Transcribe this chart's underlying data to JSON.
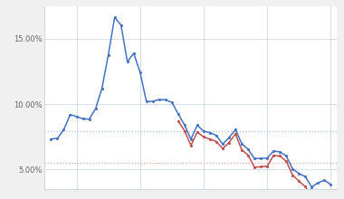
{
  "background_color": "#f0f0f0",
  "plot_bg_color": "#ffffff",
  "grid_color": "#d0d8e8",
  "years_30": [
    1971,
    1972,
    1973,
    1974,
    1975,
    1976,
    1977,
    1978,
    1979,
    1980,
    1981,
    1982,
    1983,
    1984,
    1985,
    1986,
    1987,
    1988,
    1989,
    1990,
    1991,
    1992,
    1993,
    1994,
    1995,
    1996,
    1997,
    1998,
    1999,
    2000,
    2001,
    2002,
    2003,
    2004,
    2005,
    2006,
    2007,
    2008,
    2009,
    2010,
    2011,
    2012,
    2013,
    2014,
    2015
  ],
  "rates_30yr": [
    7.33,
    7.38,
    8.04,
    9.19,
    9.05,
    8.87,
    8.85,
    9.64,
    11.2,
    13.74,
    16.63,
    16.04,
    13.24,
    13.88,
    12.43,
    10.19,
    10.21,
    10.34,
    10.32,
    10.13,
    9.25,
    8.39,
    7.31,
    8.38,
    7.93,
    7.81,
    7.6,
    6.94,
    7.44,
    8.05,
    6.97,
    6.54,
    5.83,
    5.84,
    5.87,
    6.41,
    6.34,
    6.03,
    5.04,
    4.69,
    4.45,
    3.66,
    3.98,
    4.17,
    3.85
  ],
  "years_15": [
    1991,
    1992,
    1993,
    1994,
    1995,
    1996,
    1997,
    1998,
    1999,
    2000,
    2001,
    2002,
    2003,
    2004,
    2005,
    2006,
    2007,
    2008,
    2009,
    2010,
    2011,
    2012,
    2013,
    2014,
    2015
  ],
  "rates_15yr": [
    8.69,
    7.96,
    6.83,
    7.86,
    7.48,
    7.32,
    7.13,
    6.59,
    7.06,
    7.72,
    6.5,
    6.09,
    5.17,
    5.21,
    5.25,
    6.07,
    6.03,
    5.62,
    4.57,
    4.1,
    3.68,
    2.93,
    3.11,
    3.36,
    3.09
  ],
  "color_30yr": "#4472c4",
  "color_15yr": "#c0504d",
  "color_30yr_ref": "#aabfe0",
  "color_15yr_ref": "#e0aaaa",
  "ref_30yr": 7.9,
  "ref_15yr": 5.5,
  "ylim": [
    3.5,
    17.5
  ],
  "yticks": [
    5.0,
    10.0,
    15.0
  ],
  "xlim": [
    1970,
    2016
  ],
  "xticks": [
    1975,
    1985,
    1995,
    2005,
    2015
  ]
}
